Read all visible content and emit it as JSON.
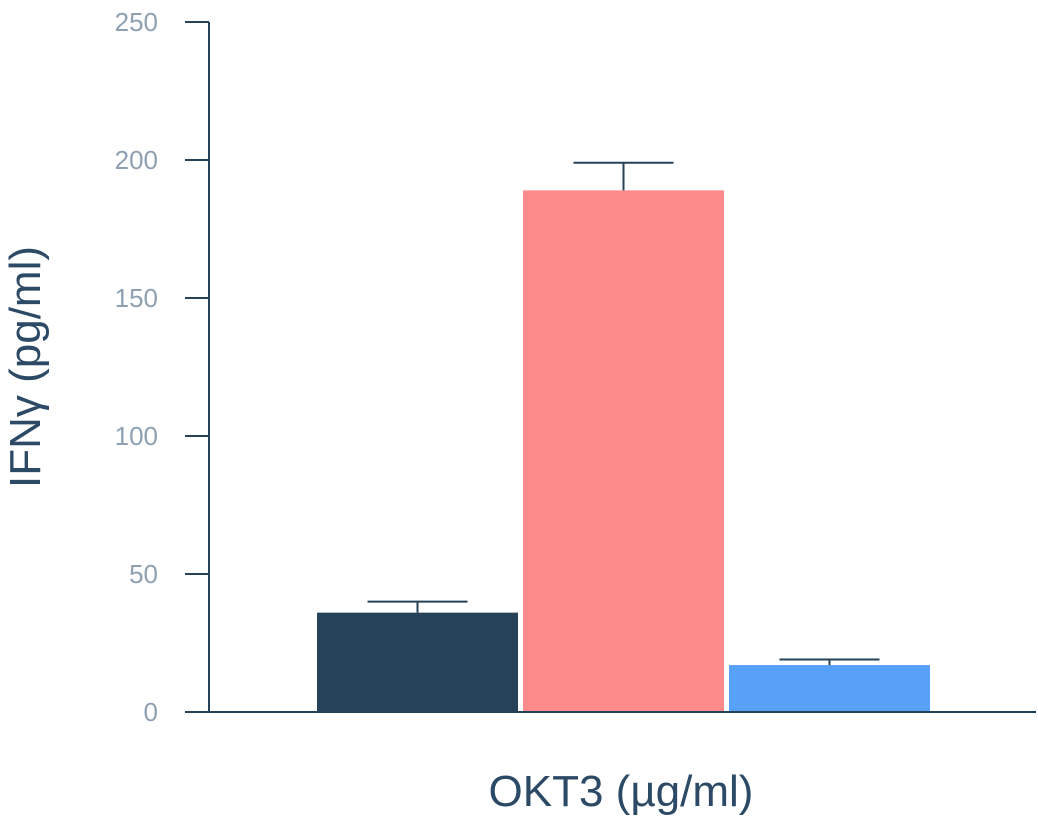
{
  "chart_data": {
    "type": "bar",
    "xlabel": "OKT3 (µg/ml)",
    "ylabel": "IFNγ (pg/ml)",
    "ylim": [
      0,
      250
    ],
    "yticks": [
      "0",
      "50",
      "100",
      "150",
      "200",
      "250"
    ],
    "grid": false,
    "legend": "none",
    "series": [
      {
        "value": 36,
        "error": 4,
        "color": "#254258"
      },
      {
        "value": 189,
        "error": 10,
        "color": "#fe8b8b"
      },
      {
        "value": 17,
        "error": 2,
        "color": "#58a1f8"
      }
    ]
  },
  "colors": {
    "axis": "#254258",
    "tick_text": "#8ea0b2",
    "title_text": "#2c4a66"
  }
}
